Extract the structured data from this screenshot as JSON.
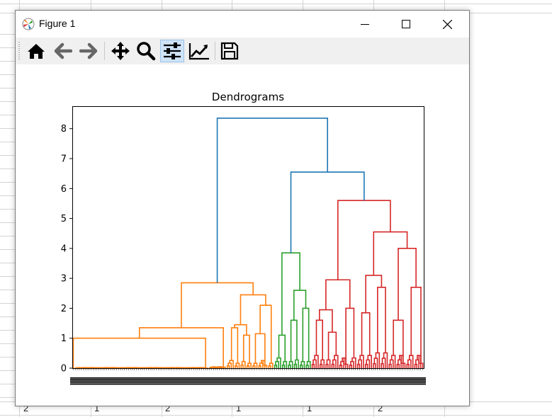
{
  "window": {
    "title": "Figure 1",
    "controls": [
      "minimize",
      "maximize",
      "close"
    ]
  },
  "toolbar": {
    "buttons": [
      {
        "name": "home",
        "icon": "home-icon"
      },
      {
        "name": "back",
        "icon": "arrow-left-icon"
      },
      {
        "name": "forward",
        "icon": "arrow-right-icon"
      },
      {
        "name": "pan",
        "icon": "move-icon"
      },
      {
        "name": "zoom",
        "icon": "magnifier-icon"
      },
      {
        "name": "configure-subplots",
        "icon": "sliders-icon",
        "active": true
      },
      {
        "name": "edit-axis",
        "icon": "line-chart-icon"
      },
      {
        "name": "save",
        "icon": "floppy-icon"
      }
    ]
  },
  "background_sheet": {
    "bottom_row_values": [
      "2",
      "1",
      "2",
      "1",
      "1",
      "2"
    ]
  },
  "chart_data": {
    "type": "dendrogram",
    "title": "Dendrograms",
    "xlabel": "",
    "ylabel": "",
    "ylim": [
      0,
      8.75
    ],
    "yticks": [
      0,
      1,
      2,
      3,
      4,
      5,
      6,
      7,
      8
    ],
    "leaf_labels_overlapping": true,
    "colors": {
      "orange": "#ff7f0e",
      "green": "#2ca02c",
      "red": "#d62728",
      "blue": "#1f77b4"
    },
    "top_links": [
      {
        "color": "#1f77b4",
        "height": 8.35,
        "children": [
          "orange-cluster",
          "right-cluster"
        ]
      },
      {
        "color": "#1f77b4",
        "height": 6.55,
        "children": [
          "green-cluster",
          "red-cluster"
        ]
      }
    ],
    "clusters": [
      {
        "name": "orange-cluster",
        "color": "#ff7f0e",
        "root_height": 2.85,
        "merge_heights": [
          2.85,
          1.35,
          1.0,
          2.45,
          2.1,
          1.45,
          1.35,
          1.15,
          1.1
        ]
      },
      {
        "name": "green-cluster",
        "color": "#2ca02c",
        "root_height": 3.85,
        "merge_heights": [
          3.85,
          2.6,
          2.0,
          1.6,
          1.1
        ]
      },
      {
        "name": "red-cluster",
        "color": "#d62728",
        "root_height": 5.6,
        "merge_heights": [
          5.6,
          4.55,
          4.0,
          3.1,
          2.95,
          2.7,
          2.0,
          1.95,
          1.85,
          1.6,
          1.2,
          1.05
        ]
      }
    ]
  }
}
